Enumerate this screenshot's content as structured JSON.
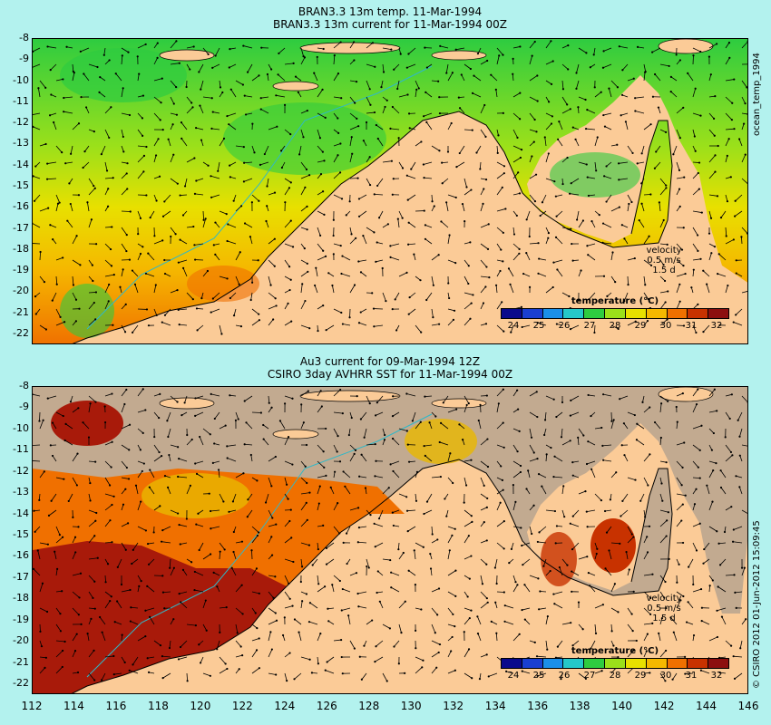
{
  "top_panel": {
    "title_line1": "BRAN3.3 13m temp. 11-Mar-1994",
    "title_line2": "BRAN3.3 13m current for 11-Mar-1994 00Z",
    "side_label": "ocean_temp_1994",
    "velocity": {
      "title": "velocity",
      "speed": "0.5 m/s",
      "days": "1.5 d"
    }
  },
  "bottom_panel": {
    "title_line1": "Au3 current for 09-Mar-1994 12Z",
    "title_line2": "CSIRO 3day AVHRR SST for 11-Mar-1994 00Z",
    "side_label": "© CSIRO 2012   01-Jun-2012 15:09:45",
    "velocity": {
      "title": "velocity",
      "speed": "0.5 m/s",
      "days": "1.5 d"
    }
  },
  "colorbar": {
    "title": "temperature (°C)",
    "ticks": [
      "24",
      "25",
      "26",
      "27",
      "28",
      "29",
      "30",
      "31",
      "32"
    ],
    "colors": [
      "#0a0a8c",
      "#1a3fd0",
      "#1b8fe8",
      "#25c8c8",
      "#2ecc40",
      "#9be01a",
      "#e8e000",
      "#f5b800",
      "#f07000",
      "#c83200",
      "#8c0f0f"
    ]
  },
  "axes": {
    "lat_ticks": [
      "-8",
      "-9",
      "-10",
      "-11",
      "-12",
      "-13",
      "-14",
      "-15",
      "-16",
      "-17",
      "-18",
      "-19",
      "-20",
      "-21",
      "-22"
    ],
    "lon_ticks": [
      "112",
      "114",
      "116",
      "118",
      "120",
      "122",
      "124",
      "126",
      "128",
      "130",
      "132",
      "134",
      "136",
      "138",
      "140",
      "142",
      "144",
      "146"
    ]
  },
  "colors": {
    "background": "#b3f2ee",
    "land": "#fbcb97",
    "no_data": "#c2aa90",
    "coast_line": "#2fb8c8"
  }
}
